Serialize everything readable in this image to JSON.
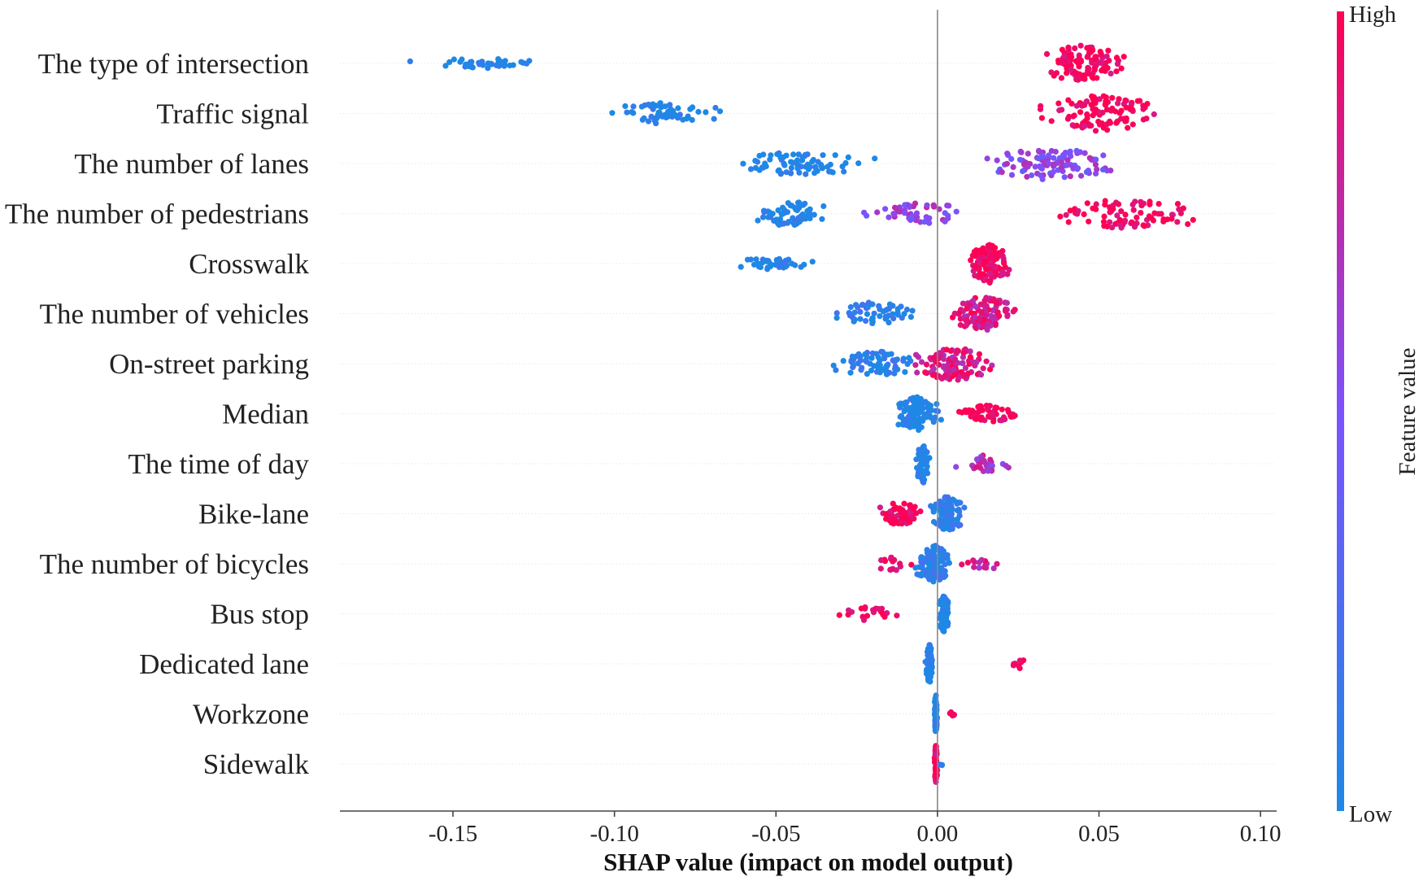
{
  "chart_data": {
    "type": "scatter",
    "subtype": "shap-beeswarm",
    "xlabel": "SHAP value (impact on model output)",
    "xlim": [
      -0.185,
      0.105
    ],
    "xticks": [
      -0.15,
      -0.1,
      -0.05,
      0.0,
      0.05,
      0.1
    ],
    "xtick_labels": [
      "-0.15",
      "-0.10",
      "-0.05",
      "0.00",
      "0.05",
      "0.10"
    ],
    "colorbar": {
      "label": "Feature value",
      "high_label": "High",
      "low_label": "Low",
      "low_color": "#1e88e5",
      "high_color": "#ff0052"
    },
    "colors": {
      "axis": "#444444",
      "zero_line": "#888888",
      "grid": "#e3e3e3"
    },
    "features": [
      {
        "name": "The type of intersection",
        "groups": [
          {
            "from": -0.17,
            "to": -0.112,
            "count": 40,
            "fv": 0.0,
            "spread": 0.25
          },
          {
            "from": 0.028,
            "to": 0.061,
            "count": 110,
            "fv": 1.0,
            "spread": 0.95
          }
        ]
      },
      {
        "name": "Traffic signal",
        "groups": [
          {
            "from": -0.107,
            "to": -0.062,
            "count": 55,
            "fv": 0.0,
            "spread": 0.55
          },
          {
            "from": 0.029,
            "to": 0.072,
            "count": 110,
            "fv": 1.0,
            "spread": 0.95
          }
        ]
      },
      {
        "name": "The number of lanes",
        "groups": [
          {
            "from": -0.071,
            "to": -0.015,
            "count": 75,
            "fv": 0.0,
            "spread": 0.6
          },
          {
            "from": 0.008,
            "to": 0.061,
            "count": 110,
            "fv": 0.55,
            "spread": 0.85
          }
        ]
      },
      {
        "name": "The number of pedestrians",
        "groups": [
          {
            "from": -0.061,
            "to": -0.033,
            "count": 60,
            "fv": 0.0,
            "spread": 0.7
          },
          {
            "from": -0.028,
            "to": 0.015,
            "count": 55,
            "fv": 0.6,
            "spread": 0.55
          },
          {
            "from": 0.028,
            "to": 0.091,
            "count": 80,
            "fv": 1.0,
            "spread": 0.8
          }
        ]
      },
      {
        "name": "Crosswalk",
        "groups": [
          {
            "from": -0.067,
            "to": -0.036,
            "count": 40,
            "fv": 0.0,
            "spread": 0.3
          },
          {
            "from": 0.009,
            "to": 0.023,
            "count": 150,
            "fv": 1.0,
            "spread": 1.0
          }
        ]
      },
      {
        "name": "The number of vehicles",
        "groups": [
          {
            "from": -0.036,
            "to": -0.003,
            "count": 55,
            "fv": 0.05,
            "spread": 0.6
          },
          {
            "from": 0.002,
            "to": 0.026,
            "count": 110,
            "fv": 0.85,
            "spread": 0.9
          }
        ]
      },
      {
        "name": "On-street parking",
        "groups": [
          {
            "from": -0.036,
            "to": -0.002,
            "count": 70,
            "fv": 0.05,
            "spread": 0.65
          },
          {
            "from": -0.01,
            "to": 0.02,
            "count": 110,
            "fv": 0.85,
            "spread": 0.9
          }
        ]
      },
      {
        "name": "Median",
        "groups": [
          {
            "from": -0.015,
            "to": 0.002,
            "count": 110,
            "fv": 0.0,
            "spread": 0.9
          },
          {
            "from": 0.002,
            "to": 0.03,
            "count": 60,
            "fv": 1.0,
            "spread": 0.45
          }
        ]
      },
      {
        "name": "The time of day",
        "groups": [
          {
            "from": -0.007,
            "to": -0.002,
            "count": 70,
            "fv": 0.0,
            "spread": 1.0
          },
          {
            "from": 0.005,
            "to": 0.023,
            "count": 30,
            "fv": 0.7,
            "spread": 0.45
          }
        ]
      },
      {
        "name": "Bike-lane",
        "groups": [
          {
            "from": -0.021,
            "to": -0.003,
            "count": 60,
            "fv": 1.0,
            "spread": 0.6
          },
          {
            "from": -0.004,
            "to": 0.01,
            "count": 90,
            "fv": 0.05,
            "spread": 0.9
          }
        ]
      },
      {
        "name": "The number of bicycles",
        "groups": [
          {
            "from": -0.022,
            "to": -0.005,
            "count": 15,
            "fv": 1.0,
            "spread": 0.35
          },
          {
            "from": -0.008,
            "to": 0.006,
            "count": 120,
            "fv": 0.1,
            "spread": 0.95
          },
          {
            "from": 0.004,
            "to": 0.023,
            "count": 15,
            "fv": 0.8,
            "spread": 0.35
          }
        ]
      },
      {
        "name": "Bus stop",
        "groups": [
          {
            "from": -0.037,
            "to": -0.008,
            "count": 22,
            "fv": 1.0,
            "spread": 0.35
          },
          {
            "from": 0.0,
            "to": 0.004,
            "count": 100,
            "fv": 0.0,
            "spread": 0.95
          }
        ]
      },
      {
        "name": "Dedicated lane",
        "groups": [
          {
            "from": -0.004,
            "to": -0.001,
            "count": 90,
            "fv": 0.0,
            "spread": 1.0
          },
          {
            "from": 0.021,
            "to": 0.03,
            "count": 8,
            "fv": 1.0,
            "spread": 0.25
          }
        ]
      },
      {
        "name": "Workzone",
        "groups": [
          {
            "from": -0.001,
            "to": 0.0,
            "count": 80,
            "fv": 0.0,
            "spread": 1.0
          },
          {
            "from": 0.003,
            "to": 0.006,
            "count": 5,
            "fv": 1.0,
            "spread": 0.15
          }
        ]
      },
      {
        "name": "Sidewalk",
        "groups": [
          {
            "from": -0.001,
            "to": 0.0,
            "count": 80,
            "fv": 1.0,
            "spread": 1.0
          },
          {
            "from": 0.0,
            "to": 0.002,
            "count": 3,
            "fv": 0.0,
            "spread": 0.1
          }
        ]
      }
    ]
  }
}
